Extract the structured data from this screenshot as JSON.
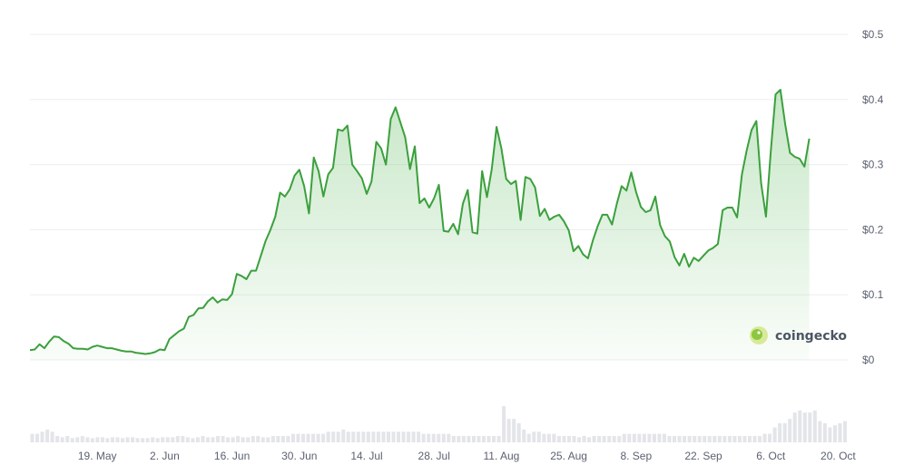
{
  "watermark": {
    "brand": "coingecko"
  },
  "chart_data": {
    "type": "area",
    "title": "",
    "xlabel": "",
    "ylabel": "",
    "ylim": [
      0,
      0.5
    ],
    "y_ticks": [
      "$0",
      "$0.1",
      "$0.2",
      "$0.3",
      "$0.4",
      "$0.5"
    ],
    "y_tick_values": [
      0,
      0.1,
      0.2,
      0.3,
      0.4,
      0.5
    ],
    "x_ticks": [
      "19. May",
      "2. Jun",
      "16. Jun",
      "30. Jun",
      "14. Jul",
      "28. Jul",
      "11. Aug",
      "25. Aug",
      "8. Sep",
      "22. Sep",
      "6. Oct",
      "20. Oct"
    ],
    "x_tick_days": [
      14,
      28,
      42,
      56,
      70,
      84,
      98,
      112,
      126,
      140,
      154,
      168
    ],
    "x_range_days": [
      0,
      170
    ],
    "grid": true,
    "line_color": "#3ba03d",
    "fill_color": "#8fcf8f",
    "volume_color": "#e3e5e9",
    "series": [
      {
        "values": [
          [
            0,
            0.015
          ],
          [
            1,
            0.016
          ],
          [
            2,
            0.024
          ],
          [
            3,
            0.018
          ],
          [
            4,
            0.028
          ],
          [
            5,
            0.036
          ],
          [
            6,
            0.035
          ],
          [
            7,
            0.029
          ],
          [
            8,
            0.025
          ],
          [
            9,
            0.018
          ],
          [
            10,
            0.017
          ],
          [
            11,
            0.017
          ],
          [
            12,
            0.016
          ],
          [
            13,
            0.02
          ],
          [
            14,
            0.022
          ],
          [
            15,
            0.02
          ],
          [
            16,
            0.018
          ],
          [
            17,
            0.018
          ],
          [
            18,
            0.016
          ],
          [
            19,
            0.014
          ],
          [
            20,
            0.013
          ],
          [
            21,
            0.013
          ],
          [
            22,
            0.011
          ],
          [
            23,
            0.01
          ],
          [
            24,
            0.009
          ],
          [
            25,
            0.01
          ],
          [
            26,
            0.012
          ],
          [
            27,
            0.016
          ],
          [
            28,
            0.015
          ],
          [
            29,
            0.032
          ],
          [
            30,
            0.038
          ],
          [
            31,
            0.044
          ],
          [
            32,
            0.048
          ],
          [
            33,
            0.066
          ],
          [
            34,
            0.069
          ],
          [
            35,
            0.079
          ],
          [
            36,
            0.08
          ],
          [
            37,
            0.09
          ],
          [
            38,
            0.096
          ],
          [
            39,
            0.088
          ],
          [
            40,
            0.093
          ],
          [
            41,
            0.092
          ],
          [
            42,
            0.101
          ],
          [
            43,
            0.132
          ],
          [
            44,
            0.129
          ],
          [
            45,
            0.124
          ],
          [
            46,
            0.137
          ],
          [
            47,
            0.137
          ],
          [
            48,
            0.16
          ],
          [
            49,
            0.183
          ],
          [
            50,
            0.2
          ],
          [
            51,
            0.22
          ],
          [
            52,
            0.257
          ],
          [
            53,
            0.251
          ],
          [
            54,
            0.262
          ],
          [
            55,
            0.283
          ],
          [
            56,
            0.292
          ],
          [
            57,
            0.267
          ],
          [
            58,
            0.225
          ],
          [
            59,
            0.311
          ],
          [
            60,
            0.29
          ],
          [
            61,
            0.251
          ],
          [
            62,
            0.285
          ],
          [
            63,
            0.295
          ],
          [
            64,
            0.354
          ],
          [
            65,
            0.352
          ],
          [
            66,
            0.36
          ],
          [
            67,
            0.3
          ],
          [
            68,
            0.29
          ],
          [
            69,
            0.279
          ],
          [
            70,
            0.255
          ],
          [
            71,
            0.274
          ],
          [
            72,
            0.335
          ],
          [
            73,
            0.325
          ],
          [
            74,
            0.3
          ],
          [
            75,
            0.37
          ],
          [
            76,
            0.388
          ],
          [
            77,
            0.365
          ],
          [
            78,
            0.342
          ],
          [
            79,
            0.293
          ],
          [
            80,
            0.328
          ],
          [
            81,
            0.241
          ],
          [
            82,
            0.248
          ],
          [
            83,
            0.234
          ],
          [
            84,
            0.248
          ],
          [
            85,
            0.269
          ],
          [
            86,
            0.198
          ],
          [
            87,
            0.197
          ],
          [
            88,
            0.209
          ],
          [
            89,
            0.193
          ],
          [
            90,
            0.24
          ],
          [
            91,
            0.261
          ],
          [
            92,
            0.196
          ],
          [
            93,
            0.194
          ],
          [
            94,
            0.29
          ],
          [
            95,
            0.25
          ],
          [
            96,
            0.293
          ],
          [
            97,
            0.358
          ],
          [
            98,
            0.325
          ],
          [
            99,
            0.278
          ],
          [
            100,
            0.27
          ],
          [
            101,
            0.275
          ],
          [
            102,
            0.215
          ],
          [
            103,
            0.281
          ],
          [
            104,
            0.278
          ],
          [
            105,
            0.265
          ],
          [
            106,
            0.221
          ],
          [
            107,
            0.232
          ],
          [
            108,
            0.215
          ],
          [
            109,
            0.22
          ],
          [
            110,
            0.223
          ],
          [
            111,
            0.213
          ],
          [
            112,
            0.199
          ],
          [
            113,
            0.167
          ],
          [
            114,
            0.175
          ],
          [
            115,
            0.162
          ],
          [
            116,
            0.156
          ],
          [
            117,
            0.183
          ],
          [
            118,
            0.205
          ],
          [
            119,
            0.223
          ],
          [
            120,
            0.223
          ],
          [
            121,
            0.208
          ],
          [
            122,
            0.24
          ],
          [
            123,
            0.267
          ],
          [
            124,
            0.26
          ],
          [
            125,
            0.288
          ],
          [
            126,
            0.258
          ],
          [
            127,
            0.235
          ],
          [
            128,
            0.227
          ],
          [
            129,
            0.23
          ],
          [
            130,
            0.251
          ],
          [
            131,
            0.207
          ],
          [
            132,
            0.19
          ],
          [
            133,
            0.182
          ],
          [
            134,
            0.158
          ],
          [
            135,
            0.145
          ],
          [
            136,
            0.163
          ],
          [
            137,
            0.143
          ],
          [
            138,
            0.157
          ],
          [
            139,
            0.152
          ],
          [
            140,
            0.16
          ],
          [
            141,
            0.168
          ],
          [
            142,
            0.172
          ],
          [
            143,
            0.178
          ],
          [
            144,
            0.23
          ],
          [
            145,
            0.234
          ],
          [
            146,
            0.234
          ],
          [
            147,
            0.219
          ],
          [
            148,
            0.285
          ],
          [
            149,
            0.322
          ],
          [
            150,
            0.353
          ],
          [
            151,
            0.367
          ],
          [
            152,
            0.271
          ],
          [
            153,
            0.22
          ],
          [
            154,
            0.32
          ],
          [
            155,
            0.408
          ],
          [
            156,
            0.415
          ],
          [
            157,
            0.362
          ],
          [
            158,
            0.318
          ],
          [
            159,
            0.312
          ],
          [
            160,
            0.309
          ],
          [
            161,
            0.297
          ],
          [
            162,
            0.34
          ]
        ]
      }
    ],
    "volume_relative": [
      0.2,
      0.2,
      0.25,
      0.3,
      0.25,
      0.15,
      0.12,
      0.15,
      0.1,
      0.12,
      0.15,
      0.12,
      0.1,
      0.12,
      0.12,
      0.1,
      0.12,
      0.12,
      0.1,
      0.12,
      0.12,
      0.1,
      0.1,
      0.1,
      0.12,
      0.1,
      0.12,
      0.12,
      0.12,
      0.15,
      0.15,
      0.12,
      0.1,
      0.12,
      0.15,
      0.12,
      0.12,
      0.15,
      0.15,
      0.12,
      0.12,
      0.15,
      0.12,
      0.12,
      0.15,
      0.15,
      0.12,
      0.12,
      0.15,
      0.15,
      0.15,
      0.15,
      0.2,
      0.2,
      0.2,
      0.2,
      0.2,
      0.2,
      0.2,
      0.25,
      0.25,
      0.25,
      0.3,
      0.25,
      0.25,
      0.25,
      0.25,
      0.25,
      0.25,
      0.25,
      0.25,
      0.25,
      0.25,
      0.25,
      0.25,
      0.25,
      0.25,
      0.25,
      0.2,
      0.2,
      0.2,
      0.2,
      0.2,
      0.2,
      0.15,
      0.15,
      0.15,
      0.15,
      0.15,
      0.15,
      0.15,
      0.15,
      0.15,
      0.15,
      0.85,
      0.55,
      0.55,
      0.45,
      0.3,
      0.2,
      0.25,
      0.25,
      0.2,
      0.2,
      0.2,
      0.15,
      0.15,
      0.15,
      0.15,
      0.12,
      0.15,
      0.12,
      0.15,
      0.15,
      0.15,
      0.15,
      0.15,
      0.15,
      0.2,
      0.2,
      0.2,
      0.2,
      0.2,
      0.2,
      0.2,
      0.2,
      0.2,
      0.15,
      0.15,
      0.15,
      0.15,
      0.15,
      0.15,
      0.15,
      0.15,
      0.15,
      0.15,
      0.15,
      0.15,
      0.15,
      0.15,
      0.15,
      0.15,
      0.15,
      0.15,
      0.15,
      0.2,
      0.2,
      0.35,
      0.45,
      0.45,
      0.55,
      0.7,
      0.75,
      0.7,
      0.7,
      0.75,
      0.5,
      0.45,
      0.35,
      0.4,
      0.45,
      0.5
    ]
  }
}
